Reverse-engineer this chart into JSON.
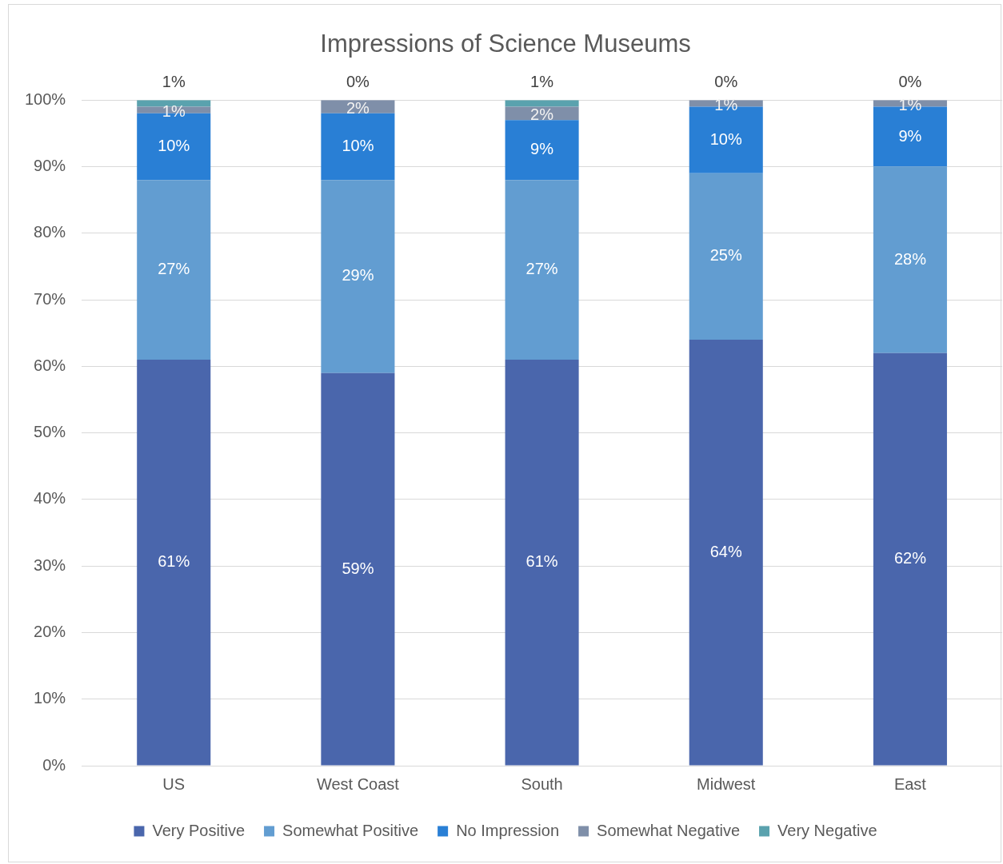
{
  "chart_data": {
    "type": "bar",
    "title": "Impressions of Science Museums",
    "categories": [
      "US",
      "West Coast",
      "South",
      "Midwest",
      "East"
    ],
    "stacked": true,
    "series": [
      {
        "name": "Very Positive",
        "color": "#4a66ac",
        "values": [
          61,
          59,
          61,
          64,
          62
        ],
        "value_labels": [
          "61%",
          "59%",
          "61%",
          "64%",
          "62%"
        ]
      },
      {
        "name": "Somewhat Positive",
        "color": "#629dd1",
        "values": [
          27,
          29,
          27,
          25,
          28
        ],
        "value_labels": [
          "27%",
          "29%",
          "27%",
          "25%",
          "28%"
        ]
      },
      {
        "name": "No Impression",
        "color": "#297fd5",
        "values": [
          10,
          10,
          9,
          10,
          9
        ],
        "value_labels": [
          "10%",
          "10%",
          "9%",
          "10%",
          "9%"
        ]
      },
      {
        "name": "Somewhat Negative",
        "color": "#7f8fa9",
        "values": [
          1,
          2,
          2,
          1,
          1
        ],
        "value_labels": [
          "1%",
          "2%",
          "2%",
          "1%",
          "1%"
        ]
      },
      {
        "name": "Very Negative",
        "color": "#5aa2ae",
        "values": [
          1,
          0,
          1,
          0,
          0
        ],
        "value_labels": [
          "1%",
          "0%",
          "1%",
          "0%",
          "0%"
        ]
      }
    ],
    "ylim": [
      0,
      100
    ],
    "yticks": [
      {
        "value": 0,
        "label": "0%"
      },
      {
        "value": 10,
        "label": "10%"
      },
      {
        "value": 20,
        "label": "20%"
      },
      {
        "value": 30,
        "label": "30%"
      },
      {
        "value": 40,
        "label": "40%"
      },
      {
        "value": 50,
        "label": "50%"
      },
      {
        "value": 60,
        "label": "60%"
      },
      {
        "value": 70,
        "label": "70%"
      },
      {
        "value": 80,
        "label": "80%"
      },
      {
        "value": 90,
        "label": "90%"
      },
      {
        "value": 100,
        "label": "100%"
      }
    ],
    "grid": "y",
    "legend": "bottom"
  }
}
